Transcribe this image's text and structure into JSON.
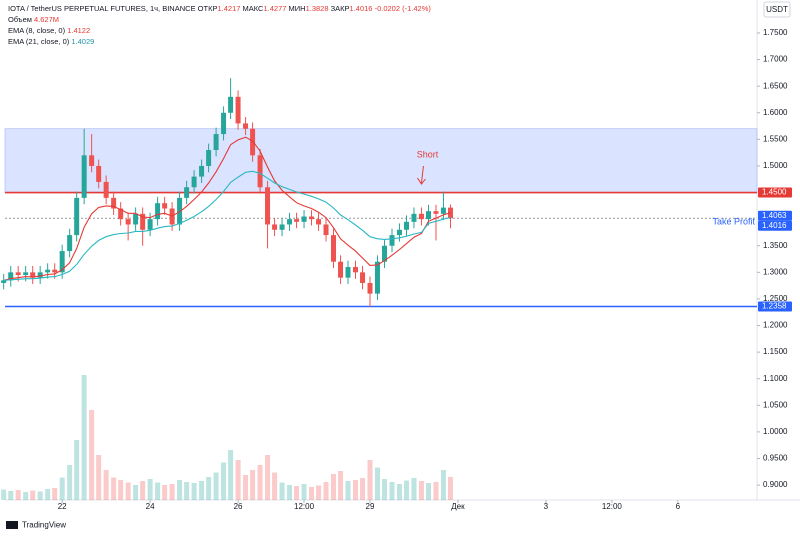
{
  "chart_data": {
    "type": "candlestick",
    "symbol": "IOTA / TetherUS PERPETUAL FUTURES, 1ч, BINANCE",
    "open_label": "ОТКР",
    "high_label": "МАКС",
    "low_label": "МИН",
    "close_label": "ЗАКР",
    "change": "-0.0202 (-1.42%)",
    "volume_name": "Объем",
    "volume_value_label": "4.627M",
    "currency": "USDT",
    "brand": "TradingView",
    "up_color": "#26a69a",
    "down_color": "#ef5350",
    "x": [
      20.67,
      20.83,
      21.0,
      21.17,
      21.33,
      21.5,
      21.67,
      21.83,
      22.0,
      22.17,
      22.33,
      22.5,
      22.67,
      22.83,
      23.0,
      23.17,
      23.33,
      23.5,
      23.67,
      23.83,
      24.0,
      24.17,
      24.33,
      24.5,
      24.67,
      24.83,
      25.0,
      25.17,
      25.33,
      25.5,
      25.67,
      25.83,
      26.0,
      26.17,
      26.33,
      26.5,
      26.67,
      26.83,
      27.0,
      27.17,
      27.33,
      27.5,
      27.67,
      27.83,
      28.0,
      28.17,
      28.33,
      28.5,
      28.67,
      28.83,
      29.0,
      29.17,
      29.33,
      29.5,
      29.67,
      29.83,
      30.0,
      30.17,
      30.33,
      30.5,
      30.67,
      30.83
    ],
    "open": [
      1.28,
      1.285,
      1.3,
      1.295,
      1.3,
      1.29,
      1.3,
      1.305,
      1.3,
      1.34,
      1.37,
      1.44,
      1.52,
      1.5,
      1.47,
      1.44,
      1.42,
      1.4,
      1.39,
      1.41,
      1.38,
      1.4,
      1.43,
      1.42,
      1.39,
      1.44,
      1.46,
      1.48,
      1.5,
      1.53,
      1.56,
      1.6,
      1.63,
      1.58,
      1.57,
      1.52,
      1.46,
      1.39,
      1.38,
      1.39,
      1.4,
      1.395,
      1.405,
      1.4,
      1.39,
      1.37,
      1.32,
      1.29,
      1.31,
      1.3,
      1.28,
      1.26,
      1.32,
      1.35,
      1.37,
      1.38,
      1.395,
      1.41,
      1.4,
      1.415,
      1.41,
      1.4217
    ],
    "high": [
      1.297,
      1.312,
      1.312,
      1.312,
      1.312,
      1.312,
      1.317,
      1.317,
      1.352,
      1.382,
      1.452,
      1.57,
      1.56,
      1.512,
      1.482,
      1.452,
      1.432,
      1.412,
      1.422,
      1.422,
      1.412,
      1.442,
      1.442,
      1.432,
      1.452,
      1.472,
      1.492,
      1.512,
      1.542,
      1.572,
      1.612,
      1.665,
      1.642,
      1.592,
      1.582,
      1.532,
      1.472,
      1.402,
      1.402,
      1.412,
      1.412,
      1.417,
      1.417,
      1.412,
      1.402,
      1.382,
      1.332,
      1.322,
      1.322,
      1.312,
      1.292,
      1.332,
      1.362,
      1.382,
      1.392,
      1.407,
      1.422,
      1.422,
      1.427,
      1.427,
      1.452,
      1.4277
    ],
    "low": [
      1.268,
      1.273,
      1.283,
      1.283,
      1.278,
      1.278,
      1.288,
      1.288,
      1.288,
      1.328,
      1.358,
      1.428,
      1.488,
      1.458,
      1.428,
      1.408,
      1.388,
      1.36,
      1.378,
      1.35,
      1.368,
      1.388,
      1.408,
      1.378,
      1.378,
      1.428,
      1.448,
      1.468,
      1.488,
      1.518,
      1.548,
      1.588,
      1.568,
      1.558,
      1.508,
      1.448,
      1.345,
      1.368,
      1.368,
      1.378,
      1.383,
      1.383,
      1.388,
      1.378,
      1.358,
      1.308,
      1.278,
      1.278,
      1.288,
      1.268,
      1.235,
      1.248,
      1.308,
      1.338,
      1.358,
      1.368,
      1.383,
      1.388,
      1.388,
      1.36,
      1.398,
      1.3828
    ],
    "close": [
      1.285,
      1.3,
      1.295,
      1.3,
      1.29,
      1.3,
      1.305,
      1.3,
      1.34,
      1.37,
      1.44,
      1.52,
      1.5,
      1.47,
      1.44,
      1.42,
      1.4,
      1.39,
      1.41,
      1.38,
      1.4,
      1.43,
      1.42,
      1.39,
      1.44,
      1.46,
      1.48,
      1.5,
      1.53,
      1.56,
      1.6,
      1.63,
      1.58,
      1.57,
      1.52,
      1.46,
      1.39,
      1.38,
      1.39,
      1.4,
      1.395,
      1.405,
      1.4,
      1.39,
      1.37,
      1.32,
      1.29,
      1.31,
      1.3,
      1.28,
      1.26,
      1.32,
      1.35,
      1.37,
      1.38,
      1.395,
      1.41,
      1.4,
      1.415,
      1.41,
      1.4217,
      1.4016
    ],
    "volume": [
      2.1,
      1.8,
      2.0,
      1.6,
      1.9,
      1.7,
      2.2,
      2.4,
      4.5,
      7.0,
      12.0,
      25.0,
      18.0,
      9.0,
      6.0,
      4.5,
      4.0,
      3.5,
      3.0,
      3.8,
      4.2,
      3.5,
      3.0,
      3.2,
      4.0,
      3.6,
      3.4,
      3.8,
      4.6,
      5.5,
      7.5,
      10.0,
      8.0,
      5.0,
      6.0,
      7.0,
      9.0,
      5.5,
      3.5,
      3.0,
      2.8,
      3.2,
      2.6,
      2.9,
      3.6,
      5.2,
      5.8,
      3.8,
      4.0,
      4.4,
      8.0,
      6.5,
      4.2,
      3.6,
      3.2,
      3.9,
      4.4,
      3.8,
      3.4,
      3.6,
      6.0,
      4.627
    ],
    "series": [
      {
        "name": "EMA (8, close, 0)",
        "value_label": "1.4122",
        "color": "#e53935",
        "values": [
          1.285,
          1.288,
          1.29,
          1.292,
          1.291,
          1.293,
          1.296,
          1.297,
          1.305,
          1.318,
          1.345,
          1.385,
          1.41,
          1.422,
          1.425,
          1.424,
          1.418,
          1.411,
          1.411,
          1.404,
          1.403,
          1.409,
          1.411,
          1.406,
          1.414,
          1.424,
          1.437,
          1.451,
          1.468,
          1.489,
          1.514,
          1.54,
          1.549,
          1.554,
          1.547,
          1.528,
          1.498,
          1.472,
          1.454,
          1.442,
          1.431,
          1.425,
          1.42,
          1.413,
          1.403,
          1.384,
          1.363,
          1.351,
          1.34,
          1.327,
          1.313,
          1.314,
          1.322,
          1.332,
          1.343,
          1.354,
          1.366,
          1.373,
          1.396,
          1.402,
          1.408,
          1.4122
        ]
      },
      {
        "name": "EMA (21, close, 0)",
        "value_label": "1.4029",
        "color": "#2bb7c4",
        "values": [
          1.285,
          1.286,
          1.287,
          1.288,
          1.288,
          1.289,
          1.291,
          1.292,
          1.296,
          1.302,
          1.315,
          1.334,
          1.349,
          1.36,
          1.367,
          1.371,
          1.373,
          1.374,
          1.377,
          1.377,
          1.379,
          1.383,
          1.386,
          1.387,
          1.392,
          1.398,
          1.405,
          1.414,
          1.424,
          1.437,
          1.452,
          1.469,
          1.479,
          1.488,
          1.49,
          1.486,
          1.477,
          1.468,
          1.461,
          1.456,
          1.451,
          1.447,
          1.443,
          1.438,
          1.432,
          1.421,
          1.408,
          1.399,
          1.389,
          1.379,
          1.367,
          1.363,
          1.362,
          1.363,
          1.365,
          1.368,
          1.372,
          1.375,
          1.392,
          1.396,
          1.4,
          1.4029
        ]
      }
    ],
    "zone": {
      "from": 1.45,
      "to": 1.57,
      "color": "#d4deff"
    },
    "levels": [
      {
        "value": 1.45,
        "label": "1.4500",
        "color": "#e53935",
        "line": "solid"
      },
      {
        "value": 1.4063,
        "label": "1.4063",
        "color": "#2962ff",
        "line": "none"
      },
      {
        "value": 1.4016,
        "label": "1.4016",
        "color": "#2962ff",
        "line": "dotted"
      },
      {
        "value": 1.2358,
        "label": "1.2358",
        "color": "#2962ff",
        "line": "solid"
      }
    ],
    "annotations": [
      {
        "text": "Short",
        "color": "#e53935"
      },
      {
        "text": "Take Profit",
        "color": "#2962ff"
      }
    ],
    "xlim": [
      20.7,
      37.8
    ],
    "ylim": [
      0.872,
      1.812
    ],
    "xticks": [
      22,
      24,
      26,
      {
        "value": 27.5,
        "label": "12:00"
      },
      29,
      {
        "value": 31,
        "label": "Дек"
      },
      {
        "value": 33,
        "label": "3"
      },
      {
        "value": 34.5,
        "label": "12:00"
      },
      {
        "value": 36,
        "label": "6"
      }
    ],
    "yticks": [
      {
        "value": 1.75,
        "label": "1.7500"
      },
      {
        "value": 1.7,
        "label": "1.7000"
      },
      {
        "value": 1.65,
        "label": "1.6500"
      },
      {
        "value": 1.6,
        "label": "1.6000"
      },
      {
        "value": 1.55,
        "label": "1.5500"
      },
      {
        "value": 1.5,
        "label": "1.5000"
      },
      {
        "value": 1.35,
        "label": "1.3500"
      },
      {
        "value": 1.3,
        "label": "1.3000"
      },
      {
        "value": 1.25,
        "label": "1.2500"
      },
      {
        "value": 1.2,
        "label": "1.2000"
      },
      {
        "value": 1.15,
        "label": "1.1500"
      },
      {
        "value": 1.1,
        "label": "1.1000"
      },
      {
        "value": 1.05,
        "label": "1.0500"
      },
      {
        "value": 1.0,
        "label": "1.0000"
      },
      {
        "value": 0.95,
        "label": "0.9500"
      },
      {
        "value": 0.9,
        "label": "0.9000"
      }
    ]
  }
}
